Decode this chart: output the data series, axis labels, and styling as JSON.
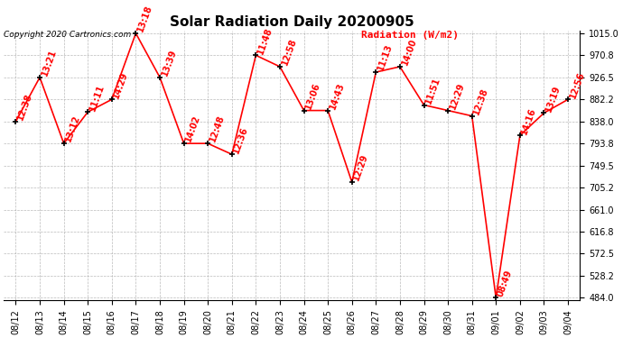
{
  "title": "Solar Radiation Daily 20200905",
  "ylabel": "Radiation (W/m2)",
  "copyright_text": "Copyright 2020 Cartronics.com",
  "dates": [
    "08/12",
    "08/13",
    "08/14",
    "08/15",
    "08/16",
    "08/17",
    "08/18",
    "08/19",
    "08/20",
    "08/21",
    "08/22",
    "08/23",
    "08/24",
    "08/25",
    "08/26",
    "08/27",
    "08/28",
    "08/29",
    "08/30",
    "08/31",
    "09/01",
    "09/02",
    "09/03",
    "09/04"
  ],
  "values": [
    838.0,
    926.5,
    793.8,
    857.0,
    882.2,
    1015.0,
    926.5,
    793.8,
    793.8,
    772.0,
    970.8,
    948.0,
    860.0,
    860.0,
    716.2,
    937.0,
    948.0,
    871.0,
    860.0,
    849.0,
    484.0,
    810.0,
    855.0,
    882.2
  ],
  "time_labels": [
    "12:38",
    "13:21",
    "13:12",
    "11:11",
    "14:29",
    "13:18",
    "13:39",
    "14:02",
    "12:48",
    "12:36",
    "11:48",
    "12:58",
    "13:06",
    "14:43",
    "12:29",
    "11:13",
    "14:00",
    "11:51",
    "12:29",
    "12:38",
    "08:49",
    "14:16",
    "13:19",
    "12:56"
  ],
  "ylim_min": 484.0,
  "ylim_max": 1015.0,
  "yticks": [
    484.0,
    528.2,
    572.5,
    616.8,
    661.0,
    705.2,
    749.5,
    793.8,
    838.0,
    882.2,
    926.5,
    970.8,
    1015.0
  ],
  "line_color": "red",
  "marker_color": "black",
  "text_color": "red",
  "bg_color": "white",
  "grid_color": "#aaaaaa",
  "title_fontsize": 11,
  "tick_fontsize": 7,
  "annotation_fontsize": 7
}
